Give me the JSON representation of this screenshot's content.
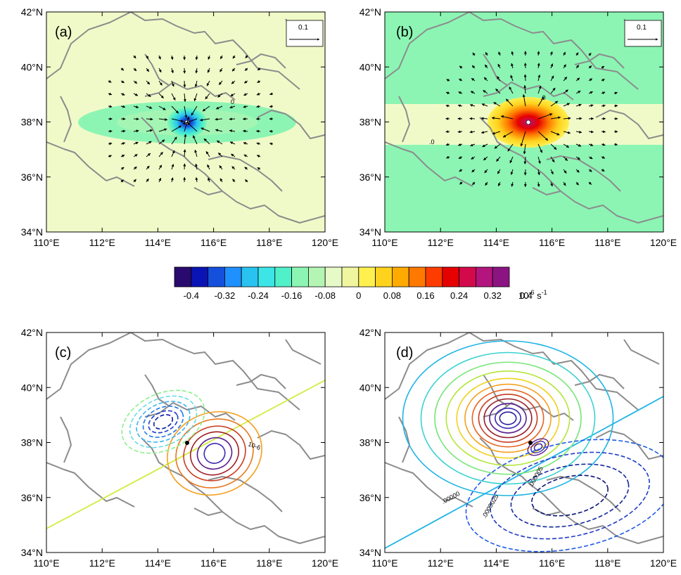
{
  "panels": [
    {
      "id": "a",
      "label": "(a)",
      "has_vector_key": true,
      "vector_key_label": "0.1",
      "contour_labels": [
        "0"
      ]
    },
    {
      "id": "b",
      "label": "(b)",
      "has_vector_key": true,
      "vector_key_label": "0.1",
      "contour_labels": [
        ".0",
        ".0"
      ]
    },
    {
      "id": "c",
      "label": "(c)",
      "has_vector_key": false,
      "contour_labels": [
        "10-6"
      ]
    },
    {
      "id": "d",
      "label": "(d)",
      "has_vector_key": false,
      "contour_labels": [
        ".00000",
        ".0000025",
        ".000005"
      ]
    }
  ],
  "axes": {
    "x_ticks": [
      "110°E",
      "112°E",
      "114°E",
      "116°E",
      "118°E",
      "120°E"
    ],
    "y_ticks": [
      "34°N",
      "36°N",
      "38°N",
      "40°N",
      "42°N"
    ],
    "lon_range": [
      110,
      120
    ],
    "lat_range": [
      34,
      42
    ]
  },
  "colorbar": {
    "colors": [
      "#2a0a6e",
      "#0a14b4",
      "#1450dc",
      "#1e90ff",
      "#28c3f0",
      "#3ce6e6",
      "#50f0c8",
      "#8cf5b4",
      "#b4f5b4",
      "#e6fac8",
      "#f0f5a0",
      "#fff050",
      "#ffd21e",
      "#ffaa00",
      "#ff7800",
      "#ff3c00",
      "#e60000",
      "#d20a4b",
      "#b4147d",
      "#8c1482"
    ],
    "tick_labels": [
      "-0.4",
      "-0.32",
      "-0.24",
      "-0.16",
      "-0.08",
      "0",
      "0.08",
      "0.16",
      "0.24",
      "0.32",
      "0.4"
    ],
    "units_base": "10",
    "units_exp": "-6",
    "units_rest": " s",
    "units_exp2": "-1"
  }
}
